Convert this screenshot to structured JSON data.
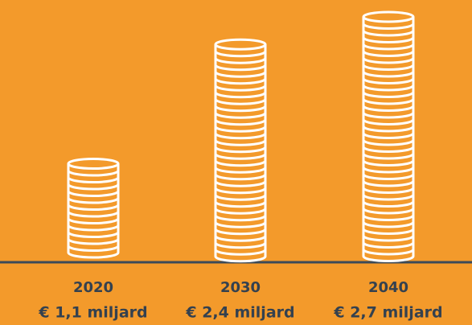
{
  "chart_data": {
    "type": "coin-stack",
    "categories": [
      "2020",
      "2030",
      "2040"
    ],
    "values": [
      1.1,
      2.4,
      2.7
    ],
    "value_labels": [
      "€ 1,1 miljard",
      "€ 2,4 miljard",
      "€ 2,7 miljard"
    ],
    "color": "#ffffff"
  }
}
